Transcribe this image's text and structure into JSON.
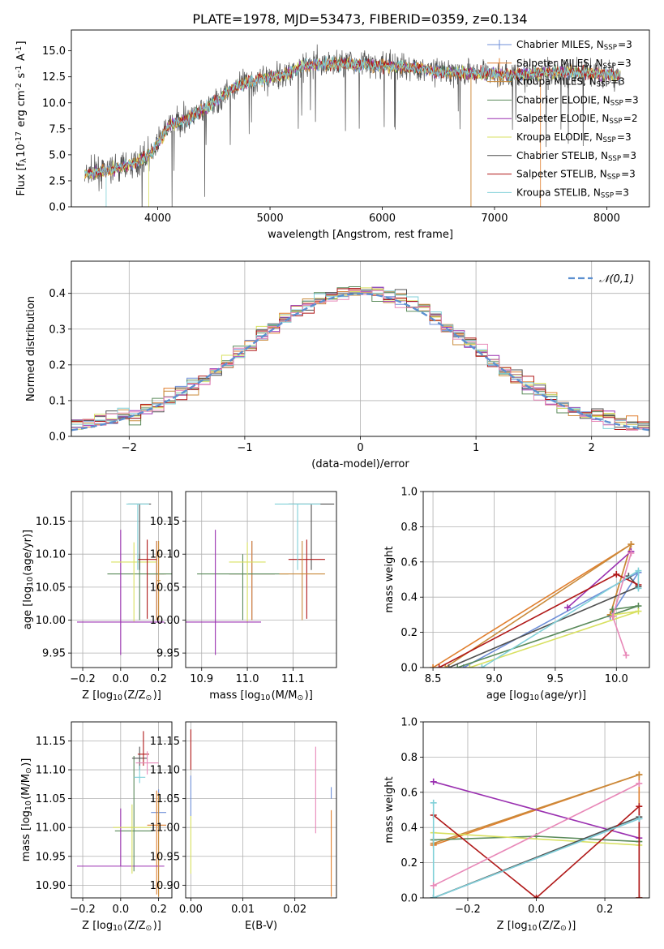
{
  "figure_title": "PLATE=1978, MJD=53473, FIBERID=0359, z=0.134",
  "series": [
    {
      "name": "Chabrier MILES, N$_{SSP}$=3",
      "color": "#6f8fd8"
    },
    {
      "name": "Salpeter MILES, N$_{SSP}$=3",
      "color": "#e07f2e"
    },
    {
      "name": "Kroupa MILES, N$_{SSP}$=3",
      "color": "#c98a3a"
    },
    {
      "name": "Chabrier ELODIE, N$_{SSP}$=3",
      "color": "#5a8a5a"
    },
    {
      "name": "Salpeter ELODIE, N$_{SSP}$=2",
      "color": "#9a30b0"
    },
    {
      "name": "Kroupa ELODIE, N$_{SSP}$=3",
      "color": "#d8e060"
    },
    {
      "name": "Chabrier STELIB, N$_{SSP}$=3",
      "color": "#505050"
    },
    {
      "name": "Salpeter STELIB, N$_{SSP}$=3",
      "color": "#b01818"
    },
    {
      "name": "Kroupa STELIB, N$_{SSP}$=3",
      "color": "#80d0d8"
    }
  ],
  "chart_data": [
    {
      "id": "spectrum",
      "type": "line",
      "xlabel": "wavelength [Angstrom, rest frame]",
      "ylabel": "Flux [f$_\\lambda$10$^{-17}$ erg cm$^{-2}$ s$^{-1}$ A$^{-1}$]",
      "xlim": [
        3230,
        8380
      ],
      "ylim": [
        0,
        17
      ],
      "xticks": [
        4000,
        5000,
        6000,
        7000,
        8000
      ],
      "yticks": [
        0.0,
        2.5,
        5.0,
        7.5,
        10.0,
        12.5,
        15.0
      ],
      "grid": false,
      "legend": "right",
      "x_range": [
        3350,
        8120
      ],
      "continuum": [
        [
          3350,
          3.1
        ],
        [
          3600,
          3.6
        ],
        [
          3800,
          4.2
        ],
        [
          3950,
          5.2
        ],
        [
          4100,
          7.8
        ],
        [
          4300,
          8.6
        ],
        [
          4500,
          10.0
        ],
        [
          4700,
          11.6
        ],
        [
          4900,
          12.3
        ],
        [
          5100,
          12.6
        ],
        [
          5300,
          13.6
        ],
        [
          5500,
          13.7
        ],
        [
          5700,
          13.8
        ],
        [
          5900,
          13.6
        ],
        [
          6100,
          13.5
        ],
        [
          6300,
          13.4
        ],
        [
          6500,
          13.0
        ],
        [
          6700,
          12.9
        ],
        [
          6900,
          12.8
        ],
        [
          7200,
          12.7
        ],
        [
          7500,
          13.0
        ],
        [
          7800,
          12.9
        ],
        [
          8120,
          12.6
        ]
      ]
    },
    {
      "id": "residuals",
      "type": "histogram",
      "xlabel": "(data-model)/error",
      "ylabel": "Normed distribution",
      "xlim": [
        -2.5,
        2.5
      ],
      "ylim": [
        0,
        0.49
      ],
      "xticks": [
        -2,
        -1,
        0,
        1,
        2
      ],
      "yticks": [
        0.0,
        0.1,
        0.2,
        0.3,
        0.4
      ],
      "grid": true,
      "legend": "top-right",
      "reference": {
        "name": "$\\mathcal{N}(0,1)$",
        "mean": 0,
        "sigma": 1,
        "color": "#5b8fd0"
      },
      "bin_width": 0.1
    },
    {
      "id": "z-age",
      "type": "errorbar",
      "xlabel": "Z [log$_{10}$(Z/Z$_\\odot$)]",
      "ylabel": "age  [log$_{10}$(age/yr)]",
      "xlim": [
        -0.26,
        0.27
      ],
      "ylim": [
        9.928,
        10.195
      ],
      "xticks": [
        -0.2,
        0.0,
        0.2
      ],
      "yticks": [
        9.95,
        10.0,
        10.05,
        10.1,
        10.15
      ],
      "grid": true,
      "points": [
        {
          "s": 0,
          "x": 0.19,
          "y": 10.07,
          "xerr": 0.04,
          "yerr": [
            0.07,
            0.05
          ]
        },
        {
          "s": 1,
          "x": 0.19,
          "y": 10.07,
          "xerr": 0.05,
          "yerr": [
            0.07,
            0.05
          ]
        },
        {
          "s": 3,
          "x": 0.1,
          "y": 10.07,
          "xerr": 0.17,
          "yerr": [
            0.07,
            0.03
          ]
        },
        {
          "s": 4,
          "x": 0.0,
          "y": 9.997,
          "xerr": 0.23,
          "yerr": [
            0.05,
            0.14
          ]
        },
        {
          "s": 5,
          "x": 0.07,
          "y": 10.088,
          "xerr": 0.12,
          "yerr": [
            0.09,
            0.03
          ]
        },
        {
          "s": 6,
          "x": 0.1,
          "y": 10.176,
          "xerr": 0.06,
          "yerr": [
            0.1,
            0.0
          ]
        },
        {
          "s": 7,
          "x": 0.14,
          "y": 10.092,
          "xerr": 0.05,
          "yerr": [
            0.09,
            0.03
          ]
        },
        {
          "s": 8,
          "x": 0.09,
          "y": 10.176,
          "xerr": 0.06,
          "yerr": [
            0.1,
            0.0
          ]
        },
        {
          "s": 2,
          "x": 0.2,
          "y": 10.06,
          "xerr": 0.01,
          "yerr": [
            0.06,
            0.06
          ]
        }
      ]
    },
    {
      "id": "mass-age",
      "type": "errorbar",
      "xlabel": "mass [log$_{10}$(M/M$_\\odot$)]",
      "ylabel": "",
      "xlim": [
        10.865,
        11.195
      ],
      "ylim": [
        9.928,
        10.195
      ],
      "xticks": [
        10.9,
        11.0,
        11.1
      ],
      "yticks": [
        9.95,
        10.0,
        10.05,
        10.1,
        10.15
      ],
      "grid": true,
      "points": [
        {
          "s": 0,
          "x": 11.01,
          "y": 10.07,
          "xerr": 0.05,
          "yerr": [
            0.07,
            0.05
          ]
        },
        {
          "s": 1,
          "x": 11.01,
          "y": 10.07,
          "xerr": 0.05,
          "yerr": [
            0.07,
            0.05
          ]
        },
        {
          "s": 3,
          "x": 10.99,
          "y": 10.07,
          "xerr": 0.1,
          "yerr": [
            0.07,
            0.03
          ]
        },
        {
          "s": 4,
          "x": 10.93,
          "y": 9.997,
          "xerr": 0.1,
          "yerr": [
            0.05,
            0.14
          ]
        },
        {
          "s": 5,
          "x": 11.0,
          "y": 10.088,
          "xerr": 0.04,
          "yerr": [
            0.09,
            0.03
          ]
        },
        {
          "s": 6,
          "x": 11.14,
          "y": 10.176,
          "xerr": 0.05,
          "yerr": [
            0.1,
            0.0
          ]
        },
        {
          "s": 7,
          "x": 11.13,
          "y": 10.092,
          "xerr": 0.04,
          "yerr": [
            0.09,
            0.03
          ]
        },
        {
          "s": 8,
          "x": 11.11,
          "y": 10.176,
          "xerr": 0.05,
          "yerr": [
            0.1,
            0.0
          ]
        },
        {
          "s": 2,
          "x": 11.12,
          "y": 10.07,
          "xerr": 0.05,
          "yerr": [
            0.07,
            0.05
          ]
        }
      ]
    },
    {
      "id": "age-weight",
      "type": "line",
      "xlabel": "age  [log$_{10}$(age/yr)]",
      "ylabel": "mass weight",
      "xlim": [
        8.42,
        10.27
      ],
      "ylim": [
        0,
        1.0
      ],
      "xticks": [
        8.5,
        9.0,
        9.5,
        10.0
      ],
      "yticks": [
        0.0,
        0.2,
        0.4,
        0.6,
        0.8,
        1.0
      ],
      "grid": true,
      "lines": [
        {
          "s": 0,
          "pts": [
            [
              8.75,
              0.0
            ],
            [
              10.18,
              0.54
            ],
            [
              9.95,
              0.29
            ]
          ]
        },
        {
          "s": 1,
          "pts": [
            [
              8.5,
              0.0
            ],
            [
              10.12,
              0.7
            ],
            [
              9.95,
              0.3
            ]
          ]
        },
        {
          "s": 2,
          "pts": [
            [
              8.6,
              0.0
            ],
            [
              10.12,
              0.7
            ],
            [
              9.95,
              0.3
            ]
          ]
        },
        {
          "s": 3,
          "pts": [
            [
              8.7,
              0.0
            ],
            [
              10.18,
              0.35
            ],
            [
              9.97,
              0.33
            ]
          ]
        },
        {
          "s": 4,
          "pts": [
            [
              9.6,
              0.34
            ],
            [
              10.12,
              0.66
            ]
          ]
        },
        {
          "s": 5,
          "pts": [
            [
              8.8,
              0.0
            ],
            [
              10.18,
              0.32
            ],
            [
              9.98,
              0.3
            ]
          ]
        },
        {
          "s": 6,
          "pts": [
            [
              8.63,
              0.0
            ],
            [
              10.18,
              0.46
            ],
            [
              10.1,
              0.52
            ]
          ]
        },
        {
          "s": 7,
          "pts": [
            [
              8.55,
              0.0
            ],
            [
              10.0,
              0.53
            ],
            [
              10.18,
              0.47
            ]
          ]
        },
        {
          "s": 8,
          "pts": [
            [
              8.9,
              0.0
            ],
            [
              10.18,
              0.55
            ],
            [
              10.18,
              0.45
            ]
          ]
        },
        {
          "s": 9,
          "pts": [
            [
              10.08,
              0.07
            ],
            [
              9.97,
              0.29
            ],
            [
              10.12,
              0.65
            ]
          ],
          "color": "#e888b8"
        }
      ]
    },
    {
      "id": "z-mass",
      "type": "errorbar",
      "xlabel": "Z [log$_{10}$(Z/Z$_\\odot$)]",
      "ylabel": "mass [log$_{10}$(M/M$_\\odot$)]",
      "xlim": [
        -0.26,
        0.27
      ],
      "ylim": [
        10.878,
        11.183
      ],
      "xticks": [
        -0.2,
        0.0,
        0.2
      ],
      "yticks": [
        10.9,
        10.95,
        11.0,
        11.05,
        11.1,
        11.15
      ],
      "grid": true,
      "points": [
        {
          "s": 0,
          "x": 0.2,
          "y": 11.026,
          "xerr": 0.04,
          "yerr": [
            0.03,
            0.04
          ]
        },
        {
          "s": 1,
          "x": 0.19,
          "y": 11.004,
          "xerr": 0.05,
          "yerr": [
            0.12,
            0.06
          ]
        },
        {
          "s": 3,
          "x": 0.07,
          "y": 10.994,
          "xerr": 0.1,
          "yerr": [
            0.07,
            0.13
          ]
        },
        {
          "s": 4,
          "x": 0.0,
          "y": 10.933,
          "xerr": 0.23,
          "yerr": [
            0.0,
            0.1
          ]
        },
        {
          "s": 5,
          "x": 0.06,
          "y": 11.0,
          "xerr": 0.1,
          "yerr": [
            0.08,
            0.04
          ]
        },
        {
          "s": 6,
          "x": 0.1,
          "y": 11.12,
          "xerr": 0.04,
          "yerr": [
            0.02,
            0.02
          ]
        },
        {
          "s": 7,
          "x": 0.12,
          "y": 11.127,
          "xerr": 0.03,
          "yerr": [
            0.02,
            0.04
          ]
        },
        {
          "s": 8,
          "x": 0.1,
          "y": 11.087,
          "xerr": 0.03,
          "yerr": [
            0.01,
            0.02
          ]
        },
        {
          "s": 9,
          "x": 0.14,
          "y": 11.112,
          "xerr": 0.06,
          "yerr": [
            0.02,
            0.02
          ],
          "color": "#e888b8"
        },
        {
          "s": 2,
          "x": 0.2,
          "y": 11.0,
          "xerr": 0.0,
          "yerr": [
            0.12,
            0.06
          ]
        }
      ]
    },
    {
      "id": "ebv-mass",
      "type": "errorbar",
      "xlabel": "E(B-V)",
      "ylabel": "",
      "xlim": [
        -0.001,
        0.028
      ],
      "ylim": [
        10.878,
        11.183
      ],
      "xticks": [
        0.0,
        0.01,
        0.02
      ],
      "yticks": [
        10.9,
        10.95,
        11.0,
        11.05,
        11.1,
        11.15
      ],
      "grid": true,
      "points": [
        {
          "s": 7,
          "x": 0.0,
          "y": 11.12,
          "xerr": 0,
          "yerr": [
            0.02,
            0.05
          ]
        },
        {
          "s": 5,
          "x": 0.0,
          "y": 10.98,
          "xerr": 0,
          "yerr": [
            0.06,
            0.04
          ]
        },
        {
          "s": 0,
          "x": 0.0,
          "y": 11.05,
          "xerr": 0,
          "yerr": [
            0.03,
            0.04
          ]
        },
        {
          "s": 9,
          "x": 0.024,
          "y": 11.06,
          "xerr": 0,
          "yerr": [
            0.07,
            0.08
          ],
          "color": "#e888b8"
        },
        {
          "s": 1,
          "x": 0.027,
          "y": 10.96,
          "xerr": 0,
          "yerr": [
            0.08,
            0.07
          ]
        },
        {
          "s": 0,
          "x": 0.027,
          "y": 11.05,
          "xerr": 0,
          "yerr": [
            0.0,
            0.02
          ]
        }
      ]
    },
    {
      "id": "z-weight",
      "type": "line",
      "xlabel": "Z [log$_{10}$(Z/Z$_\\odot$)]",
      "ylabel": "mass weight",
      "xlim": [
        -0.33,
        0.33
      ],
      "ylim": [
        0,
        1.0
      ],
      "xticks": [
        -0.2,
        0.0,
        0.2
      ],
      "yticks": [
        0.0,
        0.2,
        0.4,
        0.6,
        0.8,
        1.0
      ],
      "grid": true,
      "lines": [
        {
          "s": 0,
          "pts": [
            [
              -0.3,
              0.0
            ],
            [
              0.3,
              0.45
            ],
            [
              0.3,
              0.0
            ]
          ]
        },
        {
          "s": 1,
          "pts": [
            [
              -0.3,
              0.3
            ],
            [
              0.3,
              0.7
            ],
            [
              0.3,
              0.0
            ]
          ]
        },
        {
          "s": 2,
          "pts": [
            [
              -0.3,
              0.31
            ],
            [
              0.3,
              0.7
            ]
          ]
        },
        {
          "s": 3,
          "pts": [
            [
              -0.3,
              0.33
            ],
            [
              0.0,
              0.35
            ],
            [
              0.3,
              0.32
            ]
          ]
        },
        {
          "s": 4,
          "pts": [
            [
              -0.3,
              0.66
            ],
            [
              0.3,
              0.34
            ]
          ]
        },
        {
          "s": 5,
          "pts": [
            [
              -0.3,
              0.37
            ],
            [
              0.3,
              0.3
            ]
          ]
        },
        {
          "s": 6,
          "pts": [
            [
              -0.3,
              0.0
            ],
            [
              0.3,
              0.46
            ]
          ]
        },
        {
          "s": 7,
          "pts": [
            [
              -0.3,
              0.47
            ],
            [
              0.0,
              0.0
            ],
            [
              0.3,
              0.52
            ],
            [
              0.3,
              0.0
            ]
          ]
        },
        {
          "s": 8,
          "pts": [
            [
              -0.3,
              0.54
            ],
            [
              -0.3,
              0.0
            ],
            [
              0.3,
              0.45
            ]
          ]
        },
        {
          "s": 9,
          "pts": [
            [
              -0.3,
              0.07
            ],
            [
              0.3,
              0.65
            ]
          ],
          "color": "#e888b8"
        }
      ]
    }
  ]
}
